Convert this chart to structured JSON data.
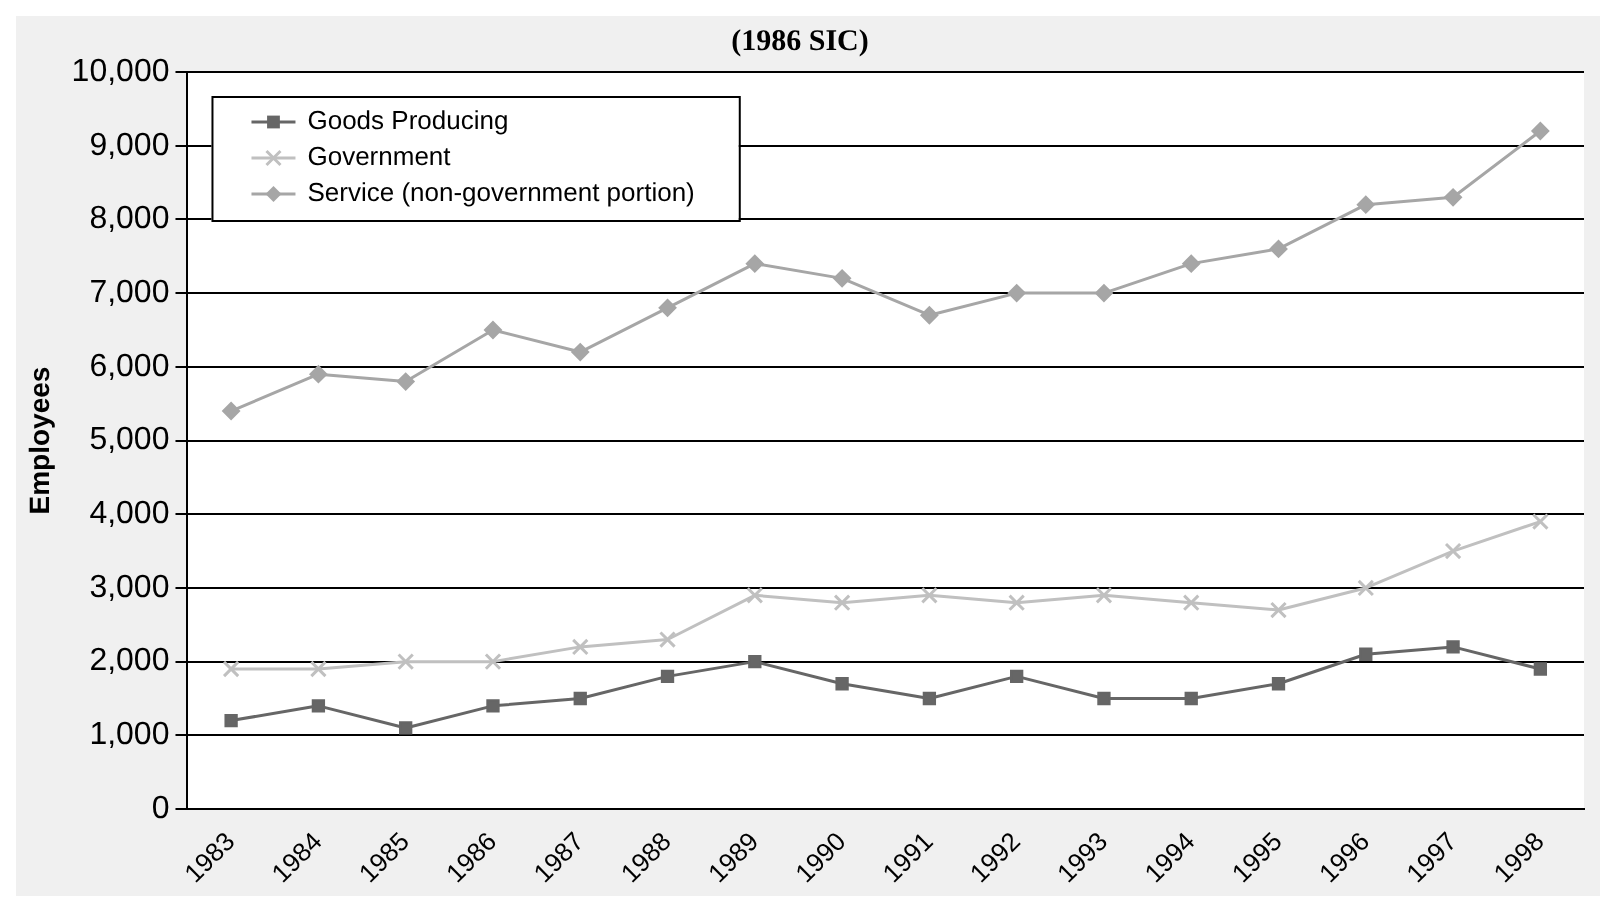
{
  "chart_data": {
    "type": "line",
    "title": "(1986 SIC)",
    "ylabel": "Employees",
    "categories": [
      "1983",
      "1984",
      "1985",
      "1986",
      "1987",
      "1988",
      "1989",
      "1990",
      "1991",
      "1992",
      "1993",
      "1994",
      "1995",
      "1996",
      "1997",
      "1998"
    ],
    "series": [
      {
        "name": "Goods Producing",
        "color": "#666666",
        "marker": "square",
        "values": [
          1200,
          1400,
          1100,
          1400,
          1500,
          1800,
          2000,
          1700,
          1500,
          1800,
          1500,
          1500,
          1700,
          2100,
          2200,
          1900
        ]
      },
      {
        "name": "Government",
        "color": "#c0c0c0",
        "marker": "cross",
        "values": [
          1900,
          1900,
          2000,
          2000,
          2200,
          2300,
          2900,
          2800,
          2900,
          2800,
          2900,
          2800,
          2700,
          3000,
          3500,
          3900
        ]
      },
      {
        "name": "Service (non-government portion)",
        "color": "#a6a6a6",
        "marker": "diamond",
        "values": [
          5400,
          5900,
          5800,
          6500,
          6200,
          6800,
          7400,
          7200,
          6700,
          7000,
          7000,
          7400,
          7600,
          8200,
          8300,
          9200
        ]
      }
    ],
    "ylim": [
      0,
      10000
    ],
    "yticks": [
      {
        "value": 0,
        "label": "0"
      },
      {
        "value": 1000,
        "label": "1,000"
      },
      {
        "value": 2000,
        "label": "2,000"
      },
      {
        "value": 3000,
        "label": "3,000"
      },
      {
        "value": 4000,
        "label": "4,000"
      },
      {
        "value": 5000,
        "label": "5,000"
      },
      {
        "value": 6000,
        "label": "6,000"
      },
      {
        "value": 7000,
        "label": "7,000"
      },
      {
        "value": 8000,
        "label": "8,000"
      },
      {
        "value": 9000,
        "label": "9,000"
      },
      {
        "value": 10000,
        "label": "10,000"
      }
    ],
    "grid": "y",
    "legend": "top left",
    "line_style": "solid"
  }
}
